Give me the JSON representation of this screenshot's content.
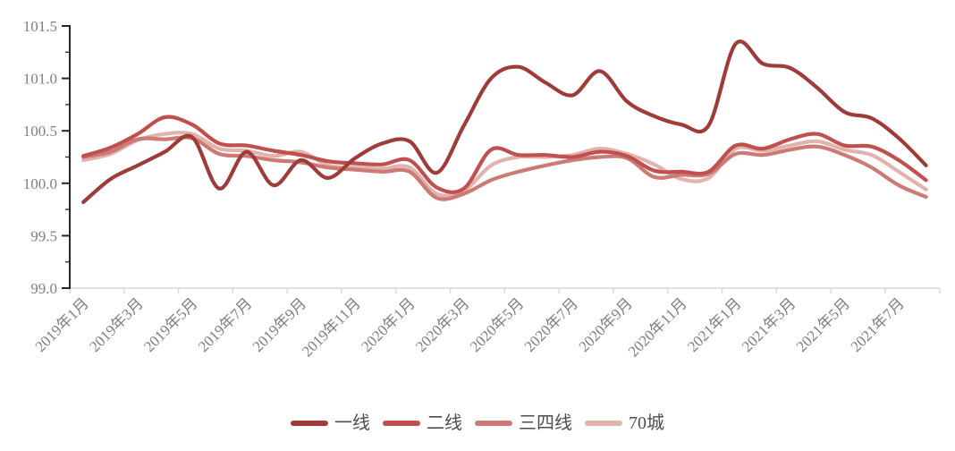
{
  "chart_data": {
    "type": "line",
    "title": "",
    "x": [
      "2019年1月",
      "2019年2月",
      "2019年3月",
      "2019年4月",
      "2019年5月",
      "2019年6月",
      "2019年7月",
      "2019年8月",
      "2019年9月",
      "2019年10月",
      "2019年11月",
      "2019年12月",
      "2020年1月",
      "2020年2月",
      "2020年3月",
      "2020年4月",
      "2020年5月",
      "2020年6月",
      "2020年7月",
      "2020年8月",
      "2020年9月",
      "2020年10月",
      "2020年11月",
      "2020年12月",
      "2021年1月",
      "2021年2月",
      "2021年3月",
      "2021年4月",
      "2021年5月",
      "2021年6月",
      "2021年7月",
      "2021年8月"
    ],
    "x_axis_tick_labels": [
      "2019年1月",
      "2019年3月",
      "2019年5月",
      "2019年7月",
      "2019年9月",
      "2019年11月",
      "2020年1月",
      "2020年3月",
      "2020年5月",
      "2020年7月",
      "2020年9月",
      "2020年11月",
      "2021年1月",
      "2021年3月",
      "2021年5月",
      "2021年7月"
    ],
    "y_ticks": [
      "99.0",
      "99.5",
      "100.0",
      "100.5",
      "101.0",
      "101.5"
    ],
    "ylim": [
      99.0,
      101.5
    ],
    "grid": false,
    "legend_position": "bottom",
    "series": [
      {
        "id": "tier1",
        "name": "一线",
        "color": "#9d3c39",
        "values": [
          99.82,
          100.04,
          100.17,
          100.3,
          100.44,
          99.95,
          100.3,
          99.98,
          100.22,
          100.05,
          100.24,
          100.38,
          100.4,
          100.1,
          100.55,
          101.0,
          101.11,
          100.96,
          100.84,
          101.07,
          100.78,
          100.64,
          100.56,
          100.55,
          101.33,
          101.14,
          101.1,
          100.91,
          100.68,
          100.62,
          100.43,
          100.17
        ]
      },
      {
        "id": "tier2",
        "name": "二线",
        "color": "#c0504d",
        "values": [
          100.26,
          100.34,
          100.47,
          100.63,
          100.56,
          100.38,
          100.36,
          100.31,
          100.27,
          100.21,
          100.19,
          100.18,
          100.22,
          99.96,
          99.95,
          100.32,
          100.27,
          100.27,
          100.25,
          100.3,
          100.26,
          100.12,
          100.11,
          100.11,
          100.36,
          100.33,
          100.42,
          100.47,
          100.36,
          100.35,
          100.22,
          100.03
        ]
      },
      {
        "id": "tier34",
        "name": "三四线",
        "color": "#cc7a76",
        "values": [
          100.25,
          100.3,
          100.42,
          100.42,
          100.43,
          100.28,
          100.26,
          100.22,
          100.2,
          100.15,
          100.13,
          100.11,
          100.11,
          99.86,
          99.9,
          100.03,
          100.11,
          100.17,
          100.22,
          100.25,
          100.24,
          100.06,
          100.08,
          100.09,
          100.28,
          100.27,
          100.32,
          100.35,
          100.27,
          100.15,
          99.98,
          99.87
        ]
      },
      {
        "id": "cities70",
        "name": "70城",
        "color": "#e2b2ae",
        "values": [
          100.22,
          100.28,
          100.41,
          100.47,
          100.47,
          100.33,
          100.31,
          100.26,
          100.3,
          100.17,
          100.15,
          100.14,
          100.15,
          99.9,
          99.93,
          100.17,
          100.25,
          100.25,
          100.27,
          100.33,
          100.28,
          100.18,
          100.04,
          100.05,
          100.33,
          100.31,
          100.36,
          100.4,
          100.32,
          100.27,
          100.11,
          99.94
        ]
      }
    ]
  },
  "colors": {
    "background": "#ffffff",
    "y_axis": "#262626",
    "x_axis": "#d9d9d9",
    "tick_label": "#808080",
    "legend_label": "#4d4d4d"
  }
}
